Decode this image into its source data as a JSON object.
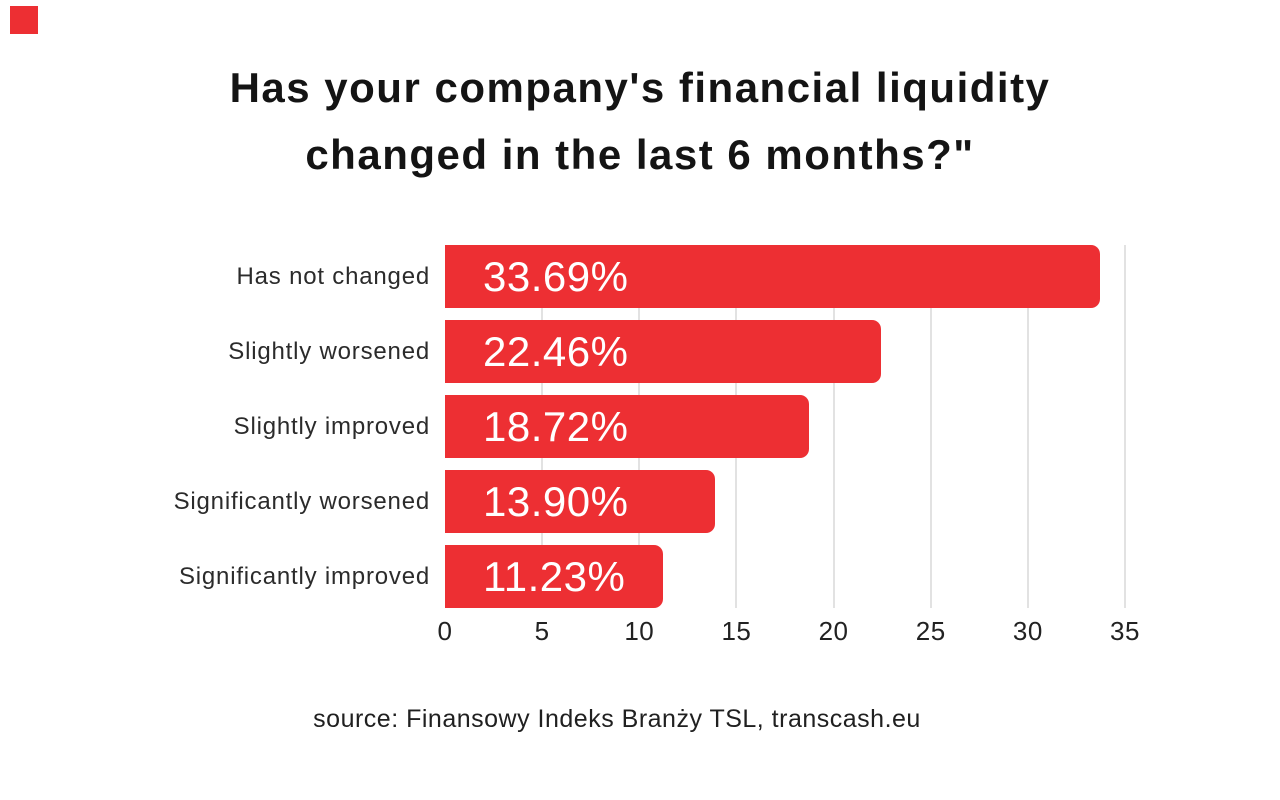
{
  "page": {
    "background": "#ffffff",
    "corner_accent": {
      "color": "#ed2f33"
    }
  },
  "title": {
    "line1": "Has your company's financial liquidity",
    "line2": "changed in the last 6 months?\""
  },
  "chart_data": {
    "type": "bar",
    "orientation": "horizontal",
    "title": "Has your company's financial liquidity changed in the last 6 months?\"",
    "categories": [
      "Has not changed",
      "Slightly worsened",
      "Slightly improved",
      "Significantly worsened",
      "Significantly improved"
    ],
    "values": [
      33.69,
      22.46,
      18.72,
      13.9,
      11.23
    ],
    "value_labels": [
      "33.69%",
      "22.46%",
      "18.72%",
      "13.90%",
      "11.23%"
    ],
    "x_ticks": [
      0,
      5,
      10,
      15,
      20,
      25,
      30,
      35
    ],
    "xlim": [
      0,
      35
    ],
    "xlabel": "",
    "ylabel": "",
    "grid": "vertical",
    "gridline_color": "#e2e2e2",
    "legend": "none",
    "bar_color": "#ed2f33",
    "value_label_color": "#ffffff"
  },
  "source": {
    "text": "source: Finansowy Indeks Branży TSL, transcash.eu"
  }
}
